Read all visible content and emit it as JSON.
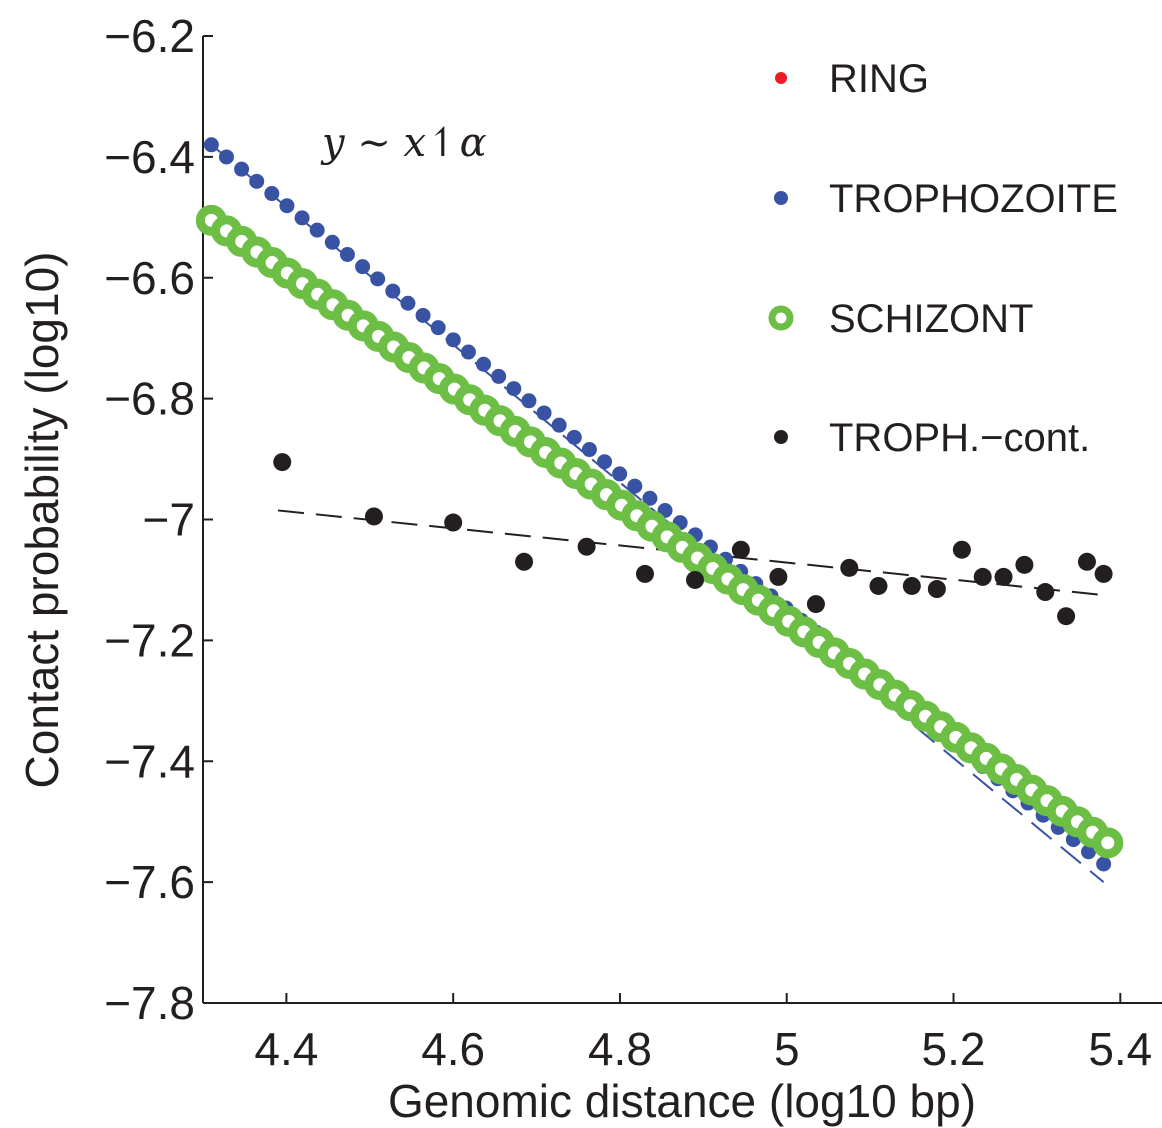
{
  "chart_data": {
    "type": "scatter",
    "xlabel": "Genomic distance (log10 bp)",
    "ylabel": "Contact probability (log10)",
    "xlim": [
      4.3,
      5.45
    ],
    "ylim": [
      -7.8,
      -6.2
    ],
    "xticks": [
      4.4,
      4.6,
      4.8,
      5,
      5.2,
      5.4
    ],
    "xtick_labels": [
      "4.4",
      "4.6",
      "4.8",
      "5",
      "5.2",
      "5.4"
    ],
    "yticks": [
      -6.2,
      -6.4,
      -6.6,
      -6.8,
      -7,
      -7.2,
      -7.4,
      -7.6,
      -7.8
    ],
    "ytick_labels": [
      "−6.2",
      "−6.4",
      "−6.6",
      "−6.8",
      "−7",
      "−7.2",
      "−7.4",
      "−7.6",
      "−7.8"
    ],
    "annotation": "y ~ x↿α",
    "legend_position": "top-right",
    "grid": false,
    "series": [
      {
        "name": "RING",
        "color": "#ed1c24",
        "marker": "dot-small",
        "x_start": 4.31,
        "x_end": 5.38,
        "n_points": 60,
        "y_start": -6.51,
        "y_end": -7.55,
        "fit": {
          "x": [
            4.31,
            5.38
          ],
          "y": [
            -6.51,
            -7.55
          ]
        }
      },
      {
        "name": "TROPHOZOITE",
        "color": "#3953a4",
        "marker": "dot-medium",
        "x_start": 4.31,
        "x_end": 5.38,
        "n_points": 60,
        "y_start": -6.38,
        "y_end": -7.57,
        "fit": {
          "x": [
            4.31,
            5.38
          ],
          "y": [
            -6.38,
            -7.6
          ]
        }
      },
      {
        "name": "SCHIZONT",
        "color": "#6cbe45",
        "marker": "ring-large",
        "x_start": 4.31,
        "x_end": 5.385,
        "n_points": 60,
        "y_start": -6.505,
        "y_end": -7.535
      },
      {
        "name": "TROPH.−cont.",
        "color": "#231f20",
        "marker": "dot-small",
        "x": [
          4.395,
          4.505,
          4.6,
          4.685,
          4.76,
          4.83,
          4.89,
          4.945,
          4.99,
          5.035,
          5.075,
          5.11,
          5.15,
          5.18,
          5.21,
          5.235,
          5.26,
          5.285,
          5.31,
          5.335,
          5.36,
          5.38
        ],
        "y": [
          -6.905,
          -6.995,
          -7.005,
          -7.07,
          -7.045,
          -7.09,
          -7.1,
          -7.05,
          -7.095,
          -7.14,
          -7.08,
          -7.11,
          -7.11,
          -7.115,
          -7.05,
          -7.095,
          -7.095,
          -7.075,
          -7.12,
          -7.16,
          -7.07,
          -7.09
        ],
        "fit": {
          "x": [
            4.39,
            5.38
          ],
          "y": [
            -6.985,
            -7.125
          ]
        }
      }
    ]
  }
}
